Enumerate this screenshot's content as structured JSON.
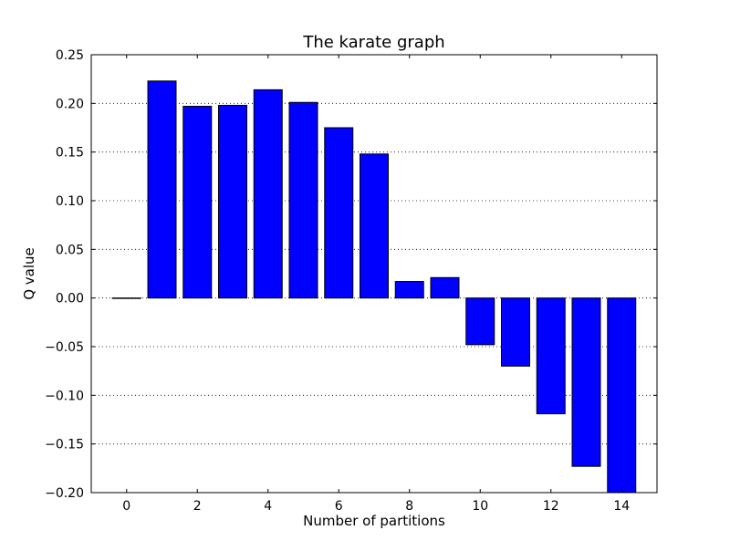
{
  "chart_data": {
    "type": "bar",
    "title": "The karate graph",
    "xlabel": "Number of partitions",
    "ylabel": "Q value",
    "x": [
      0,
      1,
      2,
      3,
      4,
      5,
      6,
      7,
      8,
      9,
      10,
      11,
      12,
      13,
      14
    ],
    "values": [
      0.0,
      0.223,
      0.197,
      0.198,
      0.214,
      0.201,
      0.175,
      0.148,
      0.017,
      0.021,
      -0.048,
      -0.07,
      -0.119,
      -0.173,
      -0.2
    ],
    "xlim": [
      -1,
      15
    ],
    "ylim": [
      -0.2,
      0.25
    ],
    "xticks": [
      "0",
      "2",
      "4",
      "6",
      "8",
      "10",
      "12",
      "14"
    ],
    "yticks": [
      "0.25",
      "0.20",
      "0.15",
      "0.10",
      "0.05",
      "0.00",
      "−0.05",
      "−0.10",
      "−0.15",
      "−0.20"
    ],
    "grid": "horizontal dotted",
    "bar_color": "#0000ff"
  }
}
